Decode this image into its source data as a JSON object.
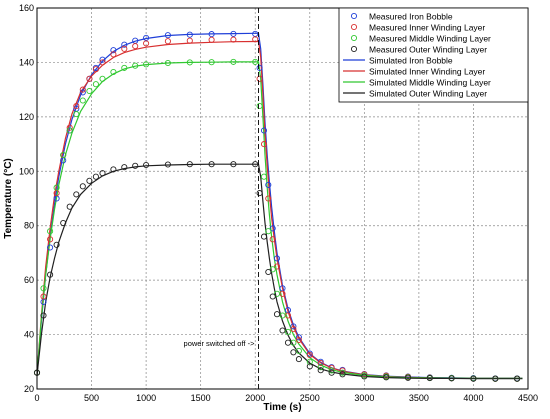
{
  "chart_data": {
    "type": "line",
    "xlabel": "Time (s)",
    "ylabel": "Temperature (°C)",
    "xlim": [
      0,
      4500
    ],
    "ylim": [
      20,
      160
    ],
    "xticks": [
      0,
      500,
      1000,
      1500,
      2000,
      2500,
      3000,
      3500,
      4000,
      4500
    ],
    "yticks": [
      20,
      40,
      60,
      80,
      100,
      120,
      140,
      160
    ],
    "grid": true,
    "legend_position": "top-right",
    "annotation": {
      "text": "power switched off ->",
      "x": 2030
    },
    "switch_off_time": 2030,
    "series": [
      {
        "name": "Measured Iron Bobble",
        "kind": "measured",
        "color": "#1f3fd8",
        "x": [
          0,
          60,
          120,
          180,
          240,
          300,
          360,
          420,
          480,
          540,
          600,
          700,
          800,
          900,
          1000,
          1200,
          1400,
          1600,
          1800,
          2000,
          2040,
          2080,
          2120,
          2160,
          2200,
          2250,
          2300,
          2350,
          2400,
          2500,
          2600,
          2700,
          2800,
          3000,
          3200,
          3400,
          3600,
          3800,
          4000,
          4200,
          4400
        ],
        "values": [
          26,
          52,
          72,
          90,
          104,
          115,
          123,
          129,
          134,
          138,
          141,
          144.5,
          146.5,
          148,
          149,
          150,
          150.2,
          150.4,
          150.5,
          150.5,
          138,
          115,
          95,
          79,
          68,
          57,
          49,
          43,
          39,
          33,
          30,
          28,
          27,
          25.5,
          25,
          24.6,
          24.3,
          24.1,
          24,
          23.9,
          23.9
        ]
      },
      {
        "name": "Measured Inner Winding Layer",
        "kind": "measured",
        "color": "#d83030",
        "x": [
          0,
          60,
          120,
          180,
          240,
          300,
          360,
          420,
          480,
          540,
          600,
          700,
          800,
          900,
          1000,
          1200,
          1400,
          1600,
          1800,
          2000,
          2040,
          2080,
          2120,
          2160,
          2200,
          2250,
          2300,
          2350,
          2400,
          2500,
          2600,
          2700,
          2800,
          3000,
          3200,
          3400,
          3600,
          3800,
          4000,
          4200,
          4400
        ],
        "values": [
          26,
          54,
          75,
          92,
          106,
          116,
          124,
          130,
          134,
          137.5,
          140,
          143,
          145,
          146,
          147,
          147.8,
          148,
          148.3,
          148.4,
          148.5,
          134,
          110,
          90,
          75,
          65,
          55,
          47,
          42,
          38,
          32.5,
          29.5,
          27.8,
          26.8,
          25.4,
          24.9,
          24.5,
          24.2,
          24,
          23.9,
          23.8,
          23.8
        ]
      },
      {
        "name": "Measured Middle Winding Layer",
        "kind": "measured",
        "color": "#30c830",
        "x": [
          0,
          60,
          120,
          180,
          240,
          300,
          360,
          420,
          480,
          540,
          600,
          700,
          800,
          900,
          1000,
          1200,
          1400,
          1600,
          1800,
          2000,
          2040,
          2080,
          2120,
          2160,
          2200,
          2250,
          2300,
          2350,
          2400,
          2500,
          2600,
          2700,
          2800,
          3000,
          3200,
          3400,
          3600,
          3800,
          4000,
          4200,
          4400
        ],
        "values": [
          26,
          57,
          78,
          94,
          106,
          115,
          121,
          126,
          129.5,
          132,
          134,
          136.5,
          138,
          138.8,
          139.3,
          139.8,
          140,
          140.1,
          140.2,
          140.2,
          124,
          98,
          78,
          64,
          55,
          47,
          41,
          37,
          34,
          30,
          28,
          26.8,
          26,
          25,
          24.6,
          24.3,
          24.1,
          24,
          23.9,
          23.8,
          23.8
        ]
      },
      {
        "name": "Measured Outer Winding Layer",
        "kind": "measured",
        "color": "#202020",
        "x": [
          0,
          60,
          120,
          180,
          240,
          300,
          360,
          420,
          480,
          540,
          600,
          700,
          800,
          900,
          1000,
          1200,
          1400,
          1600,
          1800,
          2000,
          2040,
          2080,
          2120,
          2160,
          2200,
          2250,
          2300,
          2350,
          2400,
          2500,
          2600,
          2700,
          2800,
          3000,
          3200,
          3400,
          3600,
          3800,
          4000,
          4200,
          4400
        ],
        "values": [
          26,
          47,
          62,
          73,
          81,
          87,
          91.5,
          94.5,
          96.5,
          98,
          99.3,
          100.7,
          101.5,
          102,
          102.3,
          102.5,
          102.6,
          102.6,
          102.6,
          102.6,
          92,
          76,
          63,
          54,
          47.5,
          41.5,
          37,
          33.5,
          31,
          28.3,
          26.9,
          26,
          25.4,
          24.6,
          24.3,
          24.1,
          24,
          23.9,
          23.8,
          23.8,
          23.8
        ]
      },
      {
        "name": "Simulated Iron Bobble",
        "kind": "simulated",
        "color": "#1f3fd8",
        "x": [
          0,
          40,
          80,
          120,
          160,
          200,
          260,
          320,
          400,
          500,
          600,
          700,
          800,
          900,
          1000,
          1200,
          1400,
          1600,
          1800,
          2000,
          2030,
          2050,
          2070,
          2090,
          2110,
          2130,
          2150,
          2175,
          2200,
          2250,
          2300,
          2350,
          2400,
          2500,
          2600,
          2700,
          2800,
          3000,
          3200,
          3400,
          3600,
          3800,
          4000,
          4200,
          4450
        ],
        "values": [
          25,
          45,
          62,
          76,
          88,
          98,
          110,
          119,
          128,
          135.5,
          140.5,
          144,
          146.3,
          147.8,
          148.8,
          149.9,
          150.3,
          150.5,
          150.6,
          150.7,
          150.7,
          145,
          132,
          118,
          106,
          96,
          87,
          78,
          70,
          58,
          49.5,
          43.5,
          39,
          33,
          29.8,
          27.8,
          26.6,
          25.3,
          24.7,
          24.4,
          24.2,
          24.1,
          24,
          24,
          24
        ]
      },
      {
        "name": "Simulated Inner Winding Layer",
        "kind": "simulated",
        "color": "#d83030",
        "x": [
          0,
          40,
          80,
          120,
          160,
          200,
          260,
          320,
          400,
          500,
          600,
          700,
          800,
          900,
          1000,
          1200,
          1400,
          1600,
          1800,
          2000,
          2030,
          2050,
          2070,
          2090,
          2110,
          2130,
          2150,
          2175,
          2200,
          2250,
          2300,
          2350,
          2400,
          2500,
          2600,
          2700,
          2800,
          3000,
          3200,
          3400,
          3600,
          3800,
          4000,
          4200,
          4450
        ],
        "values": [
          25,
          47,
          65,
          79,
          91,
          100,
          112,
          121,
          129,
          135,
          139,
          141.8,
          143.6,
          144.8,
          145.6,
          146.6,
          147.1,
          147.4,
          147.6,
          147.7,
          147.7,
          142,
          128,
          114,
          102,
          92,
          83,
          75,
          68,
          57,
          48.5,
          42.8,
          38.5,
          32.7,
          29.6,
          27.7,
          26.5,
          25.2,
          24.6,
          24.3,
          24.1,
          24,
          23.9,
          23.9,
          23.9
        ]
      },
      {
        "name": "Simulated Middle Winding Layer",
        "kind": "simulated",
        "color": "#30c830",
        "x": [
          0,
          40,
          80,
          120,
          160,
          200,
          260,
          320,
          400,
          500,
          600,
          700,
          800,
          900,
          1000,
          1200,
          1400,
          1600,
          1800,
          2000,
          2030,
          2050,
          2070,
          2090,
          2110,
          2130,
          2150,
          2175,
          2200,
          2250,
          2300,
          2350,
          2400,
          2500,
          2600,
          2700,
          2800,
          3000,
          3200,
          3400,
          3600,
          3800,
          4000,
          4200,
          4450
        ],
        "values": [
          25,
          46,
          62,
          75,
          86,
          95,
          106,
          114,
          122,
          128.5,
          133,
          135.8,
          137.6,
          138.6,
          139.2,
          139.8,
          140,
          140.1,
          140.2,
          140.2,
          140.2,
          134,
          120,
          106,
          94,
          84,
          76,
          68,
          62,
          52,
          45,
          40,
          36.5,
          31.5,
          28.8,
          27.1,
          26.1,
          25,
          24.5,
          24.2,
          24.1,
          24,
          23.9,
          23.9,
          23.9
        ]
      },
      {
        "name": "Simulated Outer Winding Layer",
        "kind": "simulated",
        "color": "#202020",
        "x": [
          0,
          40,
          80,
          120,
          160,
          200,
          260,
          320,
          400,
          500,
          600,
          700,
          800,
          900,
          1000,
          1200,
          1400,
          1600,
          1800,
          2000,
          2030,
          2050,
          2070,
          2090,
          2110,
          2130,
          2150,
          2175,
          2200,
          2250,
          2300,
          2350,
          2400,
          2500,
          2600,
          2700,
          2800,
          3000,
          3200,
          3400,
          3600,
          3800,
          4000,
          4200,
          4450
        ],
        "values": [
          25,
          40,
          52,
          61,
          68,
          74,
          81,
          86.5,
          91.5,
          95.6,
          98.3,
          100,
          101,
          101.6,
          102,
          102.3,
          102.5,
          102.6,
          102.6,
          102.6,
          102.6,
          98,
          89,
          81,
          74,
          68,
          62.5,
          57,
          52,
          45,
          39.8,
          36,
          33.2,
          29.5,
          27.4,
          26.2,
          25.5,
          24.6,
          24.2,
          24,
          23.9,
          23.9,
          23.8,
          23.8,
          23.8
        ]
      }
    ]
  }
}
